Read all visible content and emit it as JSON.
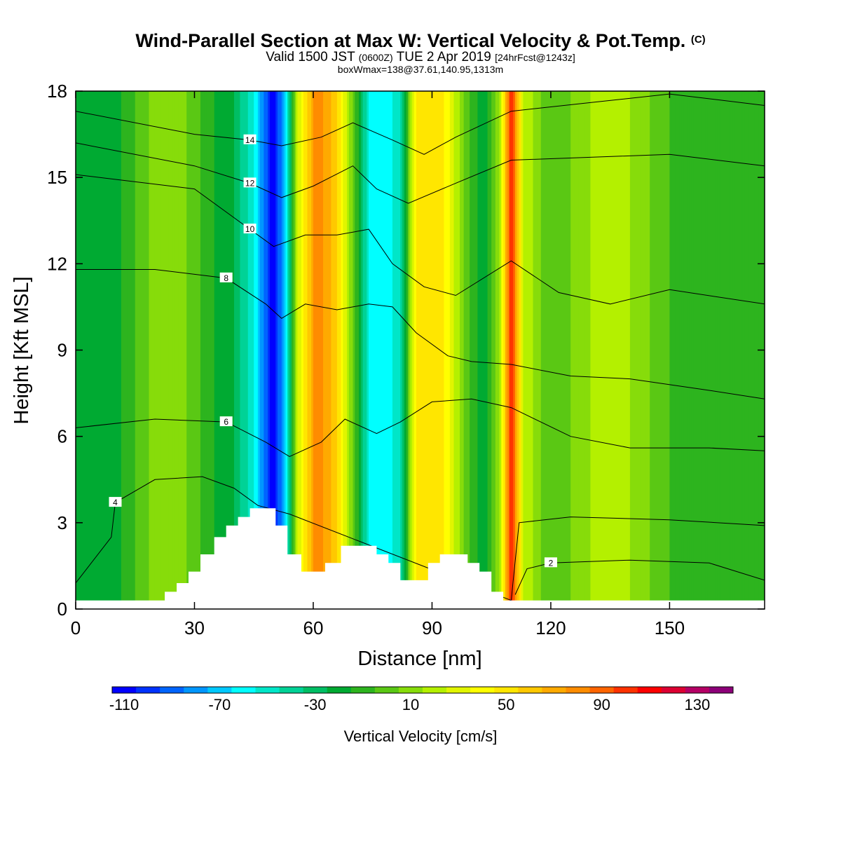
{
  "header": {
    "title": "Wind-Parallel Section at Max W: Vertical Velocity & Pot.Temp.",
    "copyright": "(C)",
    "valid_prefix": "Valid 1500 JST",
    "valid_zulu": "(0600Z)",
    "valid_date": "TUE 2 Apr 2019",
    "forecast": "[24hrFcst@1243z]",
    "box_info": "boxWmax=138@37.61,140.95,1313m"
  },
  "chart_data": {
    "type": "heatmap",
    "title": "Wind-Parallel Section at Max W: Vertical Velocity & Pot.Temp.",
    "xlabel": "Distance [nm]",
    "ylabel": "Height [Kft MSL]",
    "xlim": [
      0,
      174
    ],
    "ylim": [
      0,
      18
    ],
    "x_ticks": [
      0,
      30,
      60,
      90,
      120,
      150
    ],
    "y_ticks": [
      0,
      3,
      6,
      9,
      12,
      15,
      18
    ],
    "grid": false,
    "colorbar": {
      "title": "Vertical Velocity [cm/s]",
      "tick_labels": [
        "-110",
        "-70",
        "-30",
        "10",
        "50",
        "90",
        "130"
      ],
      "min": -110,
      "max": 150,
      "step": 10,
      "colors": [
        "#0000ff",
        "#0032ff",
        "#0064ff",
        "#0096ff",
        "#00c8ff",
        "#00ffff",
        "#00e6c8",
        "#00d296",
        "#00be64",
        "#00aa32",
        "#2db41e",
        "#5ac814",
        "#87dc0a",
        "#b4f000",
        "#e1f500",
        "#ffff00",
        "#ffe600",
        "#ffc800",
        "#ffaa00",
        "#ff8c00",
        "#ff6400",
        "#ff3200",
        "#ff0000",
        "#dc0032",
        "#b40064",
        "#8c0078"
      ]
    },
    "vertical_velocity_bands": [
      {
        "x": 0,
        "peak": -10
      },
      {
        "x": 8,
        "peak": -20
      },
      {
        "x": 22,
        "peak": 20
      },
      {
        "x": 28,
        "peak": 10
      },
      {
        "x": 35,
        "peak": -10
      },
      {
        "x": 40,
        "peak": -20
      },
      {
        "x": 45,
        "peak": -50
      },
      {
        "x": 50,
        "peak": -110
      },
      {
        "x": 53,
        "peak": -60
      },
      {
        "x": 56,
        "peak": 30
      },
      {
        "x": 61,
        "peak": 90
      },
      {
        "x": 66,
        "peak": 60
      },
      {
        "x": 70,
        "peak": 10
      },
      {
        "x": 74,
        "peak": -50
      },
      {
        "x": 78,
        "peak": -60
      },
      {
        "x": 82,
        "peak": -40
      },
      {
        "x": 86,
        "peak": 50
      },
      {
        "x": 92,
        "peak": 60
      },
      {
        "x": 98,
        "peak": 10
      },
      {
        "x": 103,
        "peak": -20
      },
      {
        "x": 107,
        "peak": 20
      },
      {
        "x": 110,
        "peak": 110
      },
      {
        "x": 113,
        "peak": 30
      },
      {
        "x": 120,
        "peak": 0
      },
      {
        "x": 130,
        "peak": 20
      },
      {
        "x": 140,
        "peak": 20
      },
      {
        "x": 150,
        "peak": 0
      },
      {
        "x": 160,
        "peak": -10
      },
      {
        "x": 174,
        "peak": -10
      }
    ],
    "terrain": [
      {
        "x": 0,
        "h": 0.3
      },
      {
        "x": 22.5,
        "h": 0.3
      },
      {
        "x": 22.5,
        "h": 0.6
      },
      {
        "x": 25.5,
        "h": 0.6
      },
      {
        "x": 25.5,
        "h": 0.9
      },
      {
        "x": 28.5,
        "h": 0.9
      },
      {
        "x": 28.5,
        "h": 1.3
      },
      {
        "x": 31.5,
        "h": 1.3
      },
      {
        "x": 31.5,
        "h": 1.9
      },
      {
        "x": 35,
        "h": 1.9
      },
      {
        "x": 35,
        "h": 2.5
      },
      {
        "x": 38,
        "h": 2.5
      },
      {
        "x": 38,
        "h": 2.9
      },
      {
        "x": 41,
        "h": 2.9
      },
      {
        "x": 41,
        "h": 3.2
      },
      {
        "x": 44,
        "h": 3.2
      },
      {
        "x": 44,
        "h": 3.5
      },
      {
        "x": 50.5,
        "h": 3.5
      },
      {
        "x": 50.5,
        "h": 2.9
      },
      {
        "x": 53.5,
        "h": 2.9
      },
      {
        "x": 53.5,
        "h": 1.9
      },
      {
        "x": 57,
        "h": 1.9
      },
      {
        "x": 57,
        "h": 1.3
      },
      {
        "x": 63,
        "h": 1.3
      },
      {
        "x": 63,
        "h": 1.6
      },
      {
        "x": 67,
        "h": 1.6
      },
      {
        "x": 67,
        "h": 2.2
      },
      {
        "x": 76,
        "h": 2.2
      },
      {
        "x": 76,
        "h": 1.9
      },
      {
        "x": 79,
        "h": 1.9
      },
      {
        "x": 79,
        "h": 1.6
      },
      {
        "x": 82,
        "h": 1.6
      },
      {
        "x": 82,
        "h": 1.0
      },
      {
        "x": 89,
        "h": 1.0
      },
      {
        "x": 89,
        "h": 1.6
      },
      {
        "x": 92,
        "h": 1.6
      },
      {
        "x": 92,
        "h": 1.9
      },
      {
        "x": 99,
        "h": 1.9
      },
      {
        "x": 99,
        "h": 1.6
      },
      {
        "x": 102,
        "h": 1.6
      },
      {
        "x": 102,
        "h": 1.3
      },
      {
        "x": 105,
        "h": 1.3
      },
      {
        "x": 105,
        "h": 0.6
      },
      {
        "x": 108,
        "h": 0.6
      },
      {
        "x": 108,
        "h": 0.3
      },
      {
        "x": 174,
        "h": 0.3
      }
    ],
    "theta_contours": [
      {
        "label": "2",
        "points": [
          [
            111,
            0.5
          ],
          [
            114,
            1.4
          ],
          [
            120,
            1.6
          ],
          [
            140,
            1.7
          ],
          [
            160,
            1.6
          ],
          [
            174,
            1.0
          ]
        ]
      },
      {
        "label": "4",
        "points": [
          [
            0,
            0.9
          ],
          [
            9,
            2.5
          ],
          [
            10,
            3.7
          ],
          [
            20,
            4.5
          ],
          [
            32,
            4.6
          ],
          [
            40,
            4.2
          ],
          [
            46,
            3.6
          ],
          [
            54,
            3.3
          ],
          [
            110,
            0.3
          ],
          [
            112,
            3.0
          ],
          [
            125,
            3.2
          ],
          [
            150,
            3.1
          ],
          [
            174,
            2.9
          ]
        ]
      },
      {
        "label": "6",
        "points": [
          [
            0,
            6.3
          ],
          [
            20,
            6.6
          ],
          [
            38,
            6.5
          ],
          [
            48,
            5.8
          ],
          [
            54,
            5.3
          ],
          [
            62,
            5.8
          ],
          [
            68,
            6.6
          ],
          [
            76,
            6.1
          ],
          [
            82,
            6.5
          ],
          [
            90,
            7.2
          ],
          [
            100,
            7.3
          ],
          [
            110,
            7.0
          ],
          [
            125,
            6.0
          ],
          [
            140,
            5.6
          ],
          [
            160,
            5.6
          ],
          [
            174,
            5.5
          ]
        ]
      },
      {
        "label": "8",
        "points": [
          [
            0,
            11.8
          ],
          [
            20,
            11.8
          ],
          [
            38,
            11.5
          ],
          [
            48,
            10.6
          ],
          [
            52,
            10.1
          ],
          [
            58,
            10.6
          ],
          [
            66,
            10.4
          ],
          [
            74,
            10.6
          ],
          [
            80,
            10.5
          ],
          [
            86,
            9.6
          ],
          [
            94,
            8.8
          ],
          [
            100,
            8.6
          ],
          [
            110,
            8.5
          ],
          [
            125,
            8.1
          ],
          [
            140,
            8.0
          ],
          [
            160,
            7.6
          ],
          [
            174,
            7.3
          ]
        ]
      },
      {
        "label": "10",
        "points": [
          [
            0,
            15.1
          ],
          [
            30,
            14.6
          ],
          [
            44,
            13.2
          ],
          [
            50,
            12.6
          ],
          [
            58,
            13.0
          ],
          [
            66,
            13.0
          ],
          [
            74,
            13.2
          ],
          [
            80,
            12.0
          ],
          [
            88,
            11.2
          ],
          [
            96,
            10.9
          ],
          [
            110,
            12.1
          ],
          [
            122,
            11.0
          ],
          [
            135,
            10.6
          ],
          [
            150,
            11.1
          ],
          [
            174,
            10.6
          ]
        ]
      },
      {
        "label": "12",
        "points": [
          [
            0,
            16.2
          ],
          [
            30,
            15.4
          ],
          [
            44,
            14.8
          ],
          [
            52,
            14.3
          ],
          [
            60,
            14.7
          ],
          [
            70,
            15.4
          ],
          [
            76,
            14.6
          ],
          [
            84,
            14.1
          ],
          [
            96,
            14.8
          ],
          [
            110,
            15.6
          ],
          [
            130,
            15.7
          ],
          [
            150,
            15.8
          ],
          [
            174,
            15.4
          ]
        ]
      },
      {
        "label": "14",
        "points": [
          [
            0,
            17.3
          ],
          [
            30,
            16.5
          ],
          [
            44,
            16.3
          ],
          [
            52,
            16.1
          ],
          [
            62,
            16.4
          ],
          [
            70,
            16.9
          ],
          [
            80,
            16.3
          ],
          [
            88,
            15.8
          ],
          [
            96,
            16.4
          ],
          [
            110,
            17.3
          ],
          [
            130,
            17.6
          ],
          [
            150,
            17.9
          ],
          [
            174,
            17.5
          ]
        ]
      }
    ]
  }
}
